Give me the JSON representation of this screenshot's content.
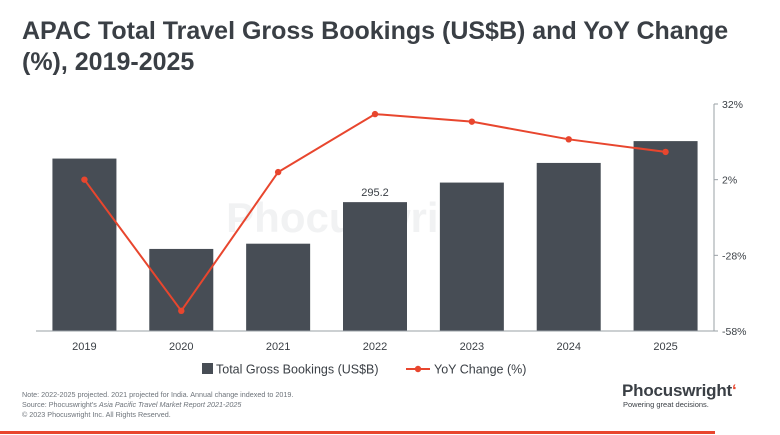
{
  "chart_data": {
    "type": "bar",
    "title": "APAC Total Travel Gross Bookings (US$B) and YoY Change (%), 2019-2025",
    "categories": [
      "2019",
      "2020",
      "2021",
      "2022",
      "2023",
      "2024",
      "2025"
    ],
    "series": [
      {
        "name": "Total Gross Bookings (US$B)",
        "type": "bar",
        "axis": "left",
        "color": "#474d55",
        "values": [
          395,
          188,
          200,
          295.2,
          340,
          385,
          435
        ]
      },
      {
        "name": "YoY Change (%)",
        "type": "line",
        "axis": "right",
        "color": "#e8462e",
        "values": [
          2,
          -50,
          5,
          28,
          25,
          18,
          13
        ]
      }
    ],
    "data_labels": [
      {
        "category": "2022",
        "text": "295.2"
      }
    ],
    "left_axis": {
      "min": 0,
      "max": 520,
      "visible": false
    },
    "right_axis": {
      "min": -58,
      "max": 32,
      "ticks": [
        "32%",
        "2%",
        "-28%",
        "-58%"
      ],
      "tick_values": [
        32,
        2,
        -28,
        -58
      ]
    },
    "legend": {
      "position": "bottom"
    },
    "grid": false,
    "watermark": "Phocuswright"
  },
  "footnotes": {
    "note": "Note: 2022-2025 projected.  2021 projected for India. Annual change indexed to 2019.",
    "source_prefix": "Source: Phocuswright's ",
    "source_title": "Asia Pacific Travel Market Report 2021-2025",
    "copyright": "© 2023 Phocuswright Inc. All Rights Reserved."
  },
  "logo": {
    "brand": "Phocuswright",
    "tagline": "Powering great decisions."
  },
  "colors": {
    "accent": "#e8462e",
    "bar": "#474d55",
    "text": "#3a3f45"
  }
}
